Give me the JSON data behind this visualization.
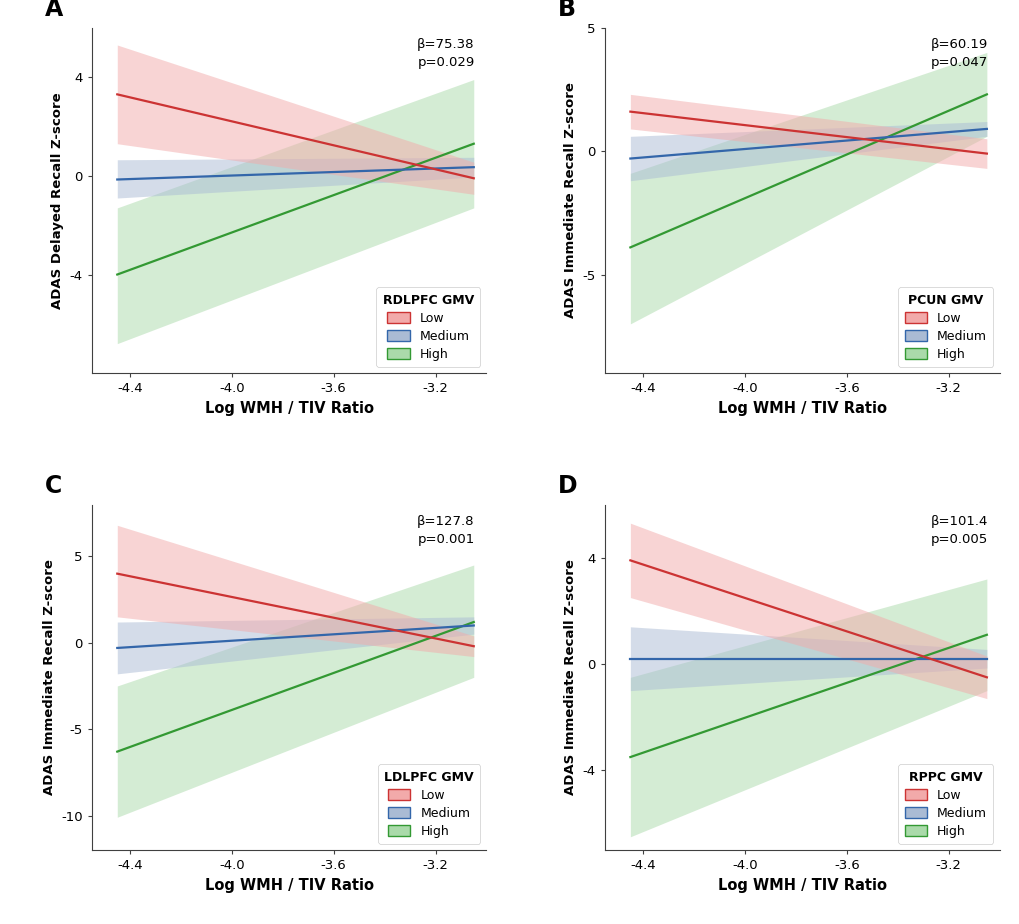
{
  "panels": [
    {
      "label": "A",
      "legend_title": "RDLPFC GMV",
      "ylabel": "ADAS Delayed Recall Z-score",
      "xlabel": "Log WMH / TIV Ratio",
      "annotation": "β=75.38\np=0.029",
      "xlim": [
        -4.55,
        -3.0
      ],
      "xticks": [
        -4.4,
        -4.0,
        -3.6,
        -3.2
      ],
      "lines": {
        "low": {
          "x0": -4.45,
          "y0": 3.3,
          "x1": -3.05,
          "y1": -0.1,
          "ci_upper0": 5.3,
          "ci_lower0": 1.3,
          "ci_upper1": 0.55,
          "ci_lower1": -0.75
        },
        "medium": {
          "x0": -4.45,
          "y0": -0.15,
          "x1": -3.05,
          "y1": 0.35,
          "ci_upper0": 0.65,
          "ci_lower0": -0.9,
          "ci_upper1": 0.75,
          "ci_lower1": -0.05
        },
        "high": {
          "x0": -4.45,
          "y0": -4.0,
          "x1": -3.05,
          "y1": 1.3,
          "ci_upper0": -1.3,
          "ci_lower0": -6.8,
          "ci_upper1": 3.9,
          "ci_lower1": -1.3
        }
      },
      "ylim": [
        -8,
        6
      ],
      "yticks": [
        -4,
        0,
        4
      ]
    },
    {
      "label": "B",
      "legend_title": "PCUN GMV",
      "ylabel": "ADAS Immediate Recall Z-score",
      "xlabel": "Log WMH / TIV Ratio",
      "annotation": "β=60.19\np=0.047",
      "xlim": [
        -4.55,
        -3.0
      ],
      "xticks": [
        -4.4,
        -4.0,
        -3.6,
        -3.2
      ],
      "lines": {
        "low": {
          "x0": -4.45,
          "y0": 1.6,
          "x1": -3.05,
          "y1": -0.1,
          "ci_upper0": 2.3,
          "ci_lower0": 0.9,
          "ci_upper1": 0.5,
          "ci_lower1": -0.7
        },
        "medium": {
          "x0": -4.45,
          "y0": -0.3,
          "x1": -3.05,
          "y1": 0.9,
          "ci_upper0": 0.6,
          "ci_lower0": -1.2,
          "ci_upper1": 1.2,
          "ci_lower1": 0.6
        },
        "high": {
          "x0": -4.45,
          "y0": -3.9,
          "x1": -3.05,
          "y1": 2.3,
          "ci_upper0": -0.9,
          "ci_lower0": -7.0,
          "ci_upper1": 4.0,
          "ci_lower1": 0.6
        }
      },
      "ylim": [
        -9,
        5
      ],
      "yticks": [
        -5,
        0,
        5
      ]
    },
    {
      "label": "C",
      "legend_title": "LDLPFC GMV",
      "ylabel": "ADAS Immediate Recall Z-score",
      "xlabel": "Log WMH / TIV Ratio",
      "annotation": "β=127.8\np=0.001",
      "xlim": [
        -4.55,
        -3.0
      ],
      "xticks": [
        -4.4,
        -4.0,
        -3.6,
        -3.2
      ],
      "lines": {
        "low": {
          "x0": -4.45,
          "y0": 4.0,
          "x1": -3.05,
          "y1": -0.2,
          "ci_upper0": 6.8,
          "ci_lower0": 1.5,
          "ci_upper1": 0.4,
          "ci_lower1": -0.8
        },
        "medium": {
          "x0": -4.45,
          "y0": -0.3,
          "x1": -3.05,
          "y1": 1.0,
          "ci_upper0": 1.2,
          "ci_lower0": -1.8,
          "ci_upper1": 1.5,
          "ci_lower1": 0.5
        },
        "high": {
          "x0": -4.45,
          "y0": -6.3,
          "x1": -3.05,
          "y1": 1.2,
          "ci_upper0": -2.5,
          "ci_lower0": -10.1,
          "ci_upper1": 4.5,
          "ci_lower1": -2.0
        }
      },
      "ylim": [
        -12,
        8
      ],
      "yticks": [
        -10,
        -5,
        0,
        5
      ]
    },
    {
      "label": "D",
      "legend_title": "RPPC GMV",
      "ylabel": "ADAS Immediate Recall Z-score",
      "xlabel": "Log WMH / TIV Ratio",
      "annotation": "β=101.4\np=0.005",
      "xlim": [
        -4.55,
        -3.0
      ],
      "xticks": [
        -4.4,
        -4.0,
        -3.6,
        -3.2
      ],
      "lines": {
        "low": {
          "x0": -4.45,
          "y0": 3.9,
          "x1": -3.05,
          "y1": -0.5,
          "ci_upper0": 5.3,
          "ci_lower0": 2.5,
          "ci_upper1": 0.3,
          "ci_lower1": -1.3
        },
        "medium": {
          "x0": -4.45,
          "y0": 0.2,
          "x1": -3.05,
          "y1": 0.2,
          "ci_upper0": 1.4,
          "ci_lower0": -1.0,
          "ci_upper1": 0.55,
          "ci_lower1": -0.15
        },
        "high": {
          "x0": -4.45,
          "y0": -3.5,
          "x1": -3.05,
          "y1": 1.1,
          "ci_upper0": -0.5,
          "ci_lower0": -6.5,
          "ci_upper1": 3.2,
          "ci_lower1": -1.0
        }
      },
      "ylim": [
        -7,
        6
      ],
      "yticks": [
        -4,
        0,
        4
      ]
    }
  ],
  "line_colors": {
    "low": "#CC3333",
    "medium": "#3366AA",
    "high": "#339933"
  },
  "ci_colors": {
    "low": "#F2AAAA",
    "medium": "#AABBD4",
    "high": "#AADAAA"
  },
  "background_color": "#FFFFFF"
}
